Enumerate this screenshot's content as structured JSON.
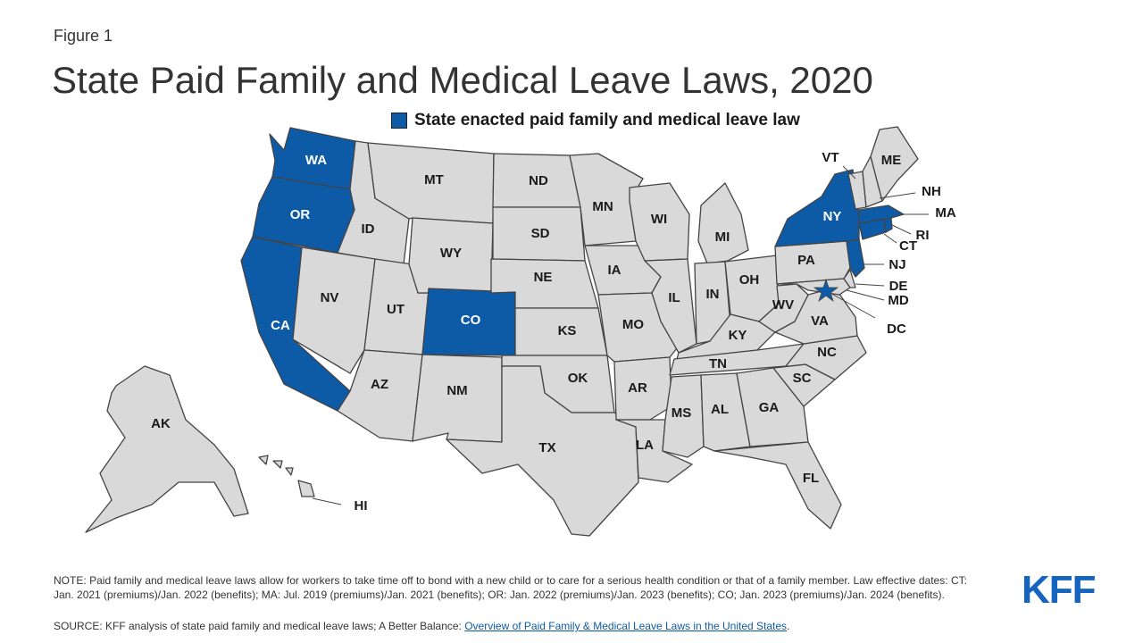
{
  "figure_label": "Figure 1",
  "title": "State Paid Family and Medical Leave Laws, 2020",
  "legend": {
    "label": "State enacted paid family and medical leave law",
    "color": "#0d5aa7"
  },
  "colors": {
    "enacted": "#0d5aa7",
    "other": "#d9d9d9",
    "border": "#444444",
    "label_on_enacted": "#ffffff",
    "label_default": "#1a1a1a"
  },
  "states": [
    {
      "abbr": "WA",
      "enacted": true
    },
    {
      "abbr": "OR",
      "enacted": true
    },
    {
      "abbr": "CA",
      "enacted": true
    },
    {
      "abbr": "CO",
      "enacted": true
    },
    {
      "abbr": "NY",
      "enacted": true
    },
    {
      "abbr": "MA",
      "enacted": true
    },
    {
      "abbr": "CT",
      "enacted": true
    },
    {
      "abbr": "RI",
      "enacted": true
    },
    {
      "abbr": "NJ",
      "enacted": true
    },
    {
      "abbr": "DC",
      "enacted": true
    },
    {
      "abbr": "MT",
      "enacted": false
    },
    {
      "abbr": "ID",
      "enacted": false
    },
    {
      "abbr": "WY",
      "enacted": false
    },
    {
      "abbr": "NV",
      "enacted": false
    },
    {
      "abbr": "UT",
      "enacted": false
    },
    {
      "abbr": "AZ",
      "enacted": false
    },
    {
      "abbr": "NM",
      "enacted": false
    },
    {
      "abbr": "ND",
      "enacted": false
    },
    {
      "abbr": "SD",
      "enacted": false
    },
    {
      "abbr": "NE",
      "enacted": false
    },
    {
      "abbr": "KS",
      "enacted": false
    },
    {
      "abbr": "OK",
      "enacted": false
    },
    {
      "abbr": "TX",
      "enacted": false
    },
    {
      "abbr": "MN",
      "enacted": false
    },
    {
      "abbr": "IA",
      "enacted": false
    },
    {
      "abbr": "MO",
      "enacted": false
    },
    {
      "abbr": "AR",
      "enacted": false
    },
    {
      "abbr": "LA",
      "enacted": false
    },
    {
      "abbr": "WI",
      "enacted": false
    },
    {
      "abbr": "IL",
      "enacted": false
    },
    {
      "abbr": "MI",
      "enacted": false
    },
    {
      "abbr": "IN",
      "enacted": false
    },
    {
      "abbr": "OH",
      "enacted": false
    },
    {
      "abbr": "KY",
      "enacted": false
    },
    {
      "abbr": "TN",
      "enacted": false
    },
    {
      "abbr": "MS",
      "enacted": false
    },
    {
      "abbr": "AL",
      "enacted": false
    },
    {
      "abbr": "GA",
      "enacted": false
    },
    {
      "abbr": "FL",
      "enacted": false
    },
    {
      "abbr": "SC",
      "enacted": false
    },
    {
      "abbr": "NC",
      "enacted": false
    },
    {
      "abbr": "VA",
      "enacted": false
    },
    {
      "abbr": "WV",
      "enacted": false
    },
    {
      "abbr": "PA",
      "enacted": false
    },
    {
      "abbr": "MD",
      "enacted": false
    },
    {
      "abbr": "DE",
      "enacted": false
    },
    {
      "abbr": "VT",
      "enacted": false
    },
    {
      "abbr": "NH",
      "enacted": false
    },
    {
      "abbr": "ME",
      "enacted": false
    },
    {
      "abbr": "AK",
      "enacted": false
    },
    {
      "abbr": "HI",
      "enacted": false
    }
  ],
  "note": "NOTE: Paid family and medical leave laws allow for workers to take time off to bond with a new child or to care for a serious health condition or that of a family member. Law effective dates: CT: Jan. 2021 (premiums)/Jan. 2022 (benefits); MA: Jul. 2019 (premiums)/Jan. 2021 (benefits); OR: Jan. 2022 (premiums)/Jan. 2023 (benefits); CO; Jan. 2023 (premiums)/Jan. 2024 (benefits).",
  "source": {
    "prefix": "SOURCE: KFF analysis of state paid family and medical leave laws; A Better Balance: ",
    "link_text": "Overview of Paid Family & Medical Leave Laws in the United States",
    "suffix": "."
  },
  "logo": "KFF"
}
